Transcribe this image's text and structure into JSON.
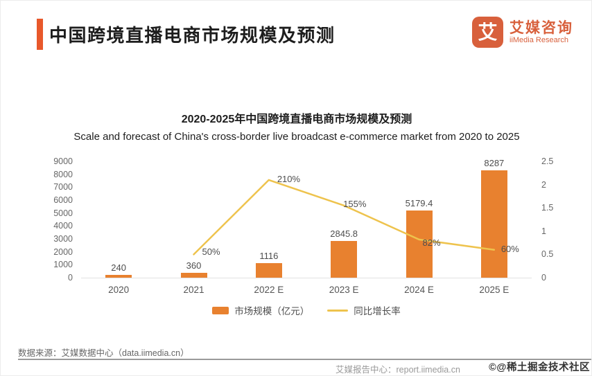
{
  "header": {
    "title": "中国跨境直播电商市场规模及预测",
    "logo": {
      "mark_char": "艾",
      "name_cn": "艾媒咨询",
      "name_en": "iiMedia Research"
    }
  },
  "chart_data": {
    "type": "bar",
    "title": "2020-2025年中国跨境直播电商市场规模及预测",
    "subtitle": "Scale and forecast of China's cross-border live broadcast e-commerce market from 2020 to 2025",
    "categories": [
      "2020",
      "2021",
      "2022 E",
      "2023 E",
      "2024 E",
      "2025 E"
    ],
    "series": [
      {
        "name": "市场规模（亿元）",
        "type": "bar",
        "axis": "left",
        "color": "#E8812F",
        "values": [
          240,
          360,
          1116,
          2845.8,
          5179.4,
          8287
        ],
        "labels": [
          "240",
          "360",
          "1116",
          "2845.8",
          "5179.4",
          "8287"
        ]
      },
      {
        "name": "同比增长率",
        "type": "line",
        "axis": "right",
        "color": "#EEC34D",
        "values": [
          null,
          0.5,
          2.1,
          1.55,
          0.82,
          0.6
        ],
        "labels": [
          "",
          "50%",
          "210%",
          "155%",
          "82%",
          "60%"
        ]
      }
    ],
    "left_axis": {
      "min": 0,
      "max": 9000,
      "step": 1000
    },
    "right_axis": {
      "min": 0,
      "max": 2.5,
      "step": 0.5
    },
    "grid": false,
    "legend_position": "bottom"
  },
  "footer": {
    "source": "数据来源：艾媒数据中心（data.iimedia.cn）",
    "report_center": "艾媒报告中心：report.iimedia.cn",
    "watermark": "©@稀土掘金技术社区"
  },
  "colors": {
    "accent": "#E8582B",
    "bar": "#E8812F",
    "line": "#EEC34D",
    "logo": "#D8603C"
  }
}
